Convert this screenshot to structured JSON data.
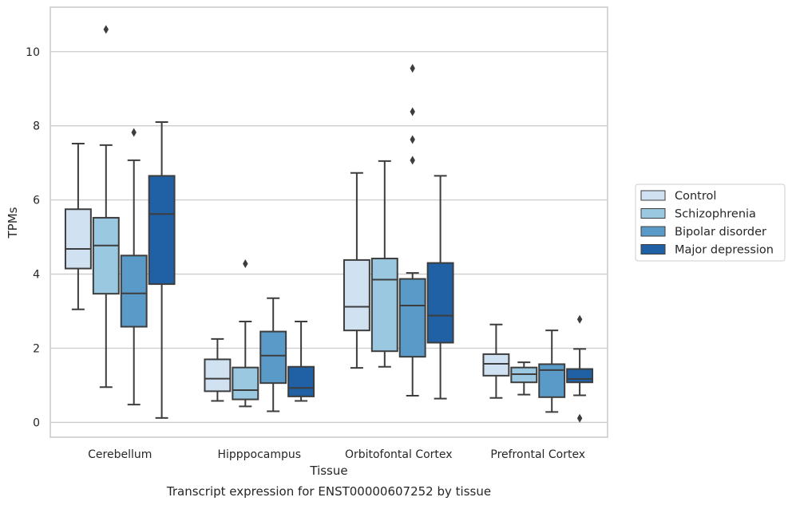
{
  "chart_data": {
    "type": "box",
    "title": "",
    "caption": "Transcript expression for ENST00000607252 by tissue",
    "xlabel": "Tissue",
    "ylabel": "TPMs",
    "ylim": [
      -0.4,
      11.2
    ],
    "yticks": [
      0,
      2,
      4,
      6,
      8,
      10
    ],
    "grid": "horizontal",
    "legend_position": "right-center",
    "categories": [
      "Cerebellum",
      "Hipppocampus",
      "Orbitofontal Cortex",
      "Prefrontal Cortex"
    ],
    "series": [
      {
        "name": "Control",
        "color": "#d0e1f2",
        "boxes": [
          {
            "whisker_low": 3.05,
            "q1": 4.15,
            "median": 4.68,
            "q3": 5.75,
            "whisker_high": 7.52,
            "outliers": []
          },
          {
            "whisker_low": 0.58,
            "q1": 0.84,
            "median": 1.18,
            "q3": 1.7,
            "whisker_high": 2.25,
            "outliers": []
          },
          {
            "whisker_low": 1.47,
            "q1": 2.48,
            "median": 3.12,
            "q3": 4.38,
            "whisker_high": 6.73,
            "outliers": []
          },
          {
            "whisker_low": 0.66,
            "q1": 1.26,
            "median": 1.58,
            "q3": 1.84,
            "whisker_high": 2.64,
            "outliers": []
          }
        ]
      },
      {
        "name": "Schizophrenia",
        "color": "#9ac8e0",
        "boxes": [
          {
            "whisker_low": 0.95,
            "q1": 3.47,
            "median": 4.77,
            "q3": 5.52,
            "whisker_high": 7.48,
            "outliers": [
              10.6
            ]
          },
          {
            "whisker_low": 0.43,
            "q1": 0.62,
            "median": 0.87,
            "q3": 1.48,
            "whisker_high": 2.72,
            "outliers": [
              4.28
            ]
          },
          {
            "whisker_low": 1.5,
            "q1": 1.92,
            "median": 3.85,
            "q3": 4.42,
            "whisker_high": 7.05,
            "outliers": []
          },
          {
            "whisker_low": 0.75,
            "q1": 1.08,
            "median": 1.3,
            "q3": 1.48,
            "whisker_high": 1.62,
            "outliers": []
          }
        ]
      },
      {
        "name": "Bipolar disorder",
        "color": "#5a9ac8",
        "boxes": [
          {
            "whisker_low": 0.48,
            "q1": 2.58,
            "median": 3.48,
            "q3": 4.5,
            "whisker_high": 7.07,
            "outliers": [
              7.82
            ]
          },
          {
            "whisker_low": 0.3,
            "q1": 1.06,
            "median": 1.8,
            "q3": 2.45,
            "whisker_high": 3.35,
            "outliers": []
          },
          {
            "whisker_low": 0.72,
            "q1": 1.77,
            "median": 3.15,
            "q3": 3.87,
            "whisker_high": 4.03,
            "outliers": [
              9.55,
              8.38,
              7.63,
              7.07
            ]
          },
          {
            "whisker_low": 0.28,
            "q1": 0.68,
            "median": 1.41,
            "q3": 1.57,
            "whisker_high": 2.48,
            "outliers": []
          }
        ]
      },
      {
        "name": "Major depression",
        "color": "#2060a4",
        "boxes": [
          {
            "whisker_low": 0.12,
            "q1": 3.73,
            "median": 5.62,
            "q3": 6.65,
            "whisker_high": 8.1,
            "outliers": []
          },
          {
            "whisker_low": 0.58,
            "q1": 0.7,
            "median": 0.93,
            "q3": 1.5,
            "whisker_high": 2.72,
            "outliers": []
          },
          {
            "whisker_low": 0.64,
            "q1": 2.15,
            "median": 2.88,
            "q3": 4.3,
            "whisker_high": 6.65,
            "outliers": []
          },
          {
            "whisker_low": 0.73,
            "q1": 1.08,
            "median": 1.17,
            "q3": 1.44,
            "whisker_high": 1.98,
            "outliers": [
              2.78,
              0.11
            ]
          }
        ]
      }
    ]
  }
}
